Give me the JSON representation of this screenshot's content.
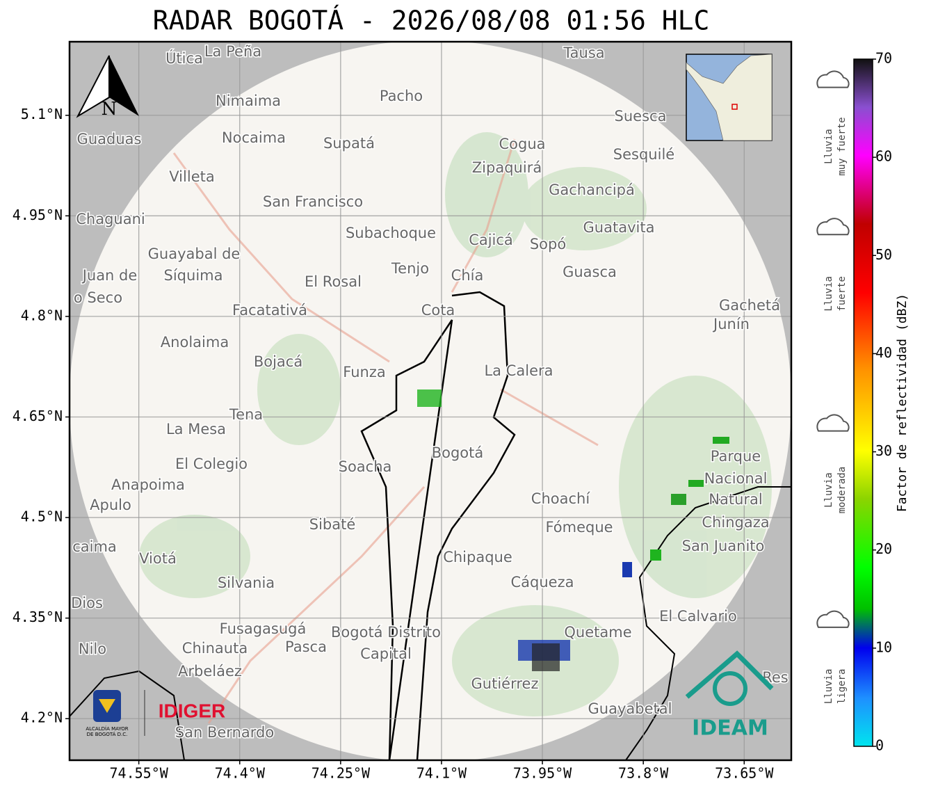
{
  "map": {
    "title": "RADAR BOGOTÁ - 2026/08/08 01:56 HLC",
    "xlim": [
      -74.653,
      -73.58
    ],
    "ylim": [
      4.138,
      5.2097
    ],
    "xticks": [
      {
        "value": -74.55,
        "label": "74.55°W"
      },
      {
        "value": -74.4,
        "label": "74.4°W"
      },
      {
        "value": -74.25,
        "label": "74.25°W"
      },
      {
        "value": -74.1,
        "label": "74.1°W"
      },
      {
        "value": -73.95,
        "label": "73.95°W"
      },
      {
        "value": -73.8,
        "label": "73.8°W"
      },
      {
        "value": -73.65,
        "label": "73.65°W"
      }
    ],
    "yticks": [
      {
        "value": 5.1,
        "label": "5.1°N"
      },
      {
        "value": 4.95,
        "label": "4.95°N"
      },
      {
        "value": 4.8,
        "label": "4.8°N"
      },
      {
        "value": 4.65,
        "label": "4.65°N"
      },
      {
        "value": 4.5,
        "label": "4.5°N"
      },
      {
        "value": 4.35,
        "label": "4.35°N"
      },
      {
        "value": 4.2,
        "label": "4.2°N"
      }
    ],
    "grid": true,
    "north": "N",
    "places": [
      "Útica",
      "La Peña",
      "Tausa",
      "Pacho",
      "Nimaima",
      "Guaduas",
      "Nocaima",
      "Supatá",
      "Cogua",
      "Zipaquirá",
      "Suesca",
      "Sesquilé",
      "Villeta",
      "Gachancipá",
      "San Francisco",
      "Chaguani",
      "Subachoque",
      "Cajicá",
      "Sopó",
      "Guatavita",
      "Guayabal de",
      "Síquima",
      "Tenjo",
      "Chía",
      "Guasca",
      "Juan de",
      "o Seco",
      "El Rosal",
      "Facatativá",
      "Cota",
      "Gachetá",
      "Junín",
      "Anolaima",
      "Bojacá",
      "Funza",
      "La Calera",
      "Tena",
      "La Mesa",
      "Bogotá",
      "Parque",
      "Nacional",
      "Natural",
      "Chingaza",
      "El Colegio",
      "Soacha",
      "Anapoima",
      "Apulo",
      "Choachí",
      "Fómeque",
      "Sibaté",
      "San Juanito",
      "caima",
      "Viotá",
      "Chipaque",
      "Silvania",
      "Cáqueza",
      "Dios",
      "El Calvario",
      "Fusagasugá",
      "Bogotá Distrito",
      "Capital",
      "Quetame",
      "Chinauta",
      "Pasca",
      "Nilo",
      "Arbeláez",
      "Gutiérrez",
      "Res",
      "Guayabetal",
      "San Bernardo"
    ],
    "logos": {
      "alcaldia": [
        "ALCALDÍA MAYOR",
        "DE BOGOTÁ D.C."
      ],
      "idiger": "IDIGER",
      "ideam": "IDEAM"
    },
    "colorbar": {
      "label": "Factor de reflectividad (dBZ)",
      "lim": [
        0,
        70
      ],
      "ticks": [
        0,
        10,
        20,
        30,
        40,
        50,
        60,
        70
      ],
      "categories": [
        {
          "lines": [
            "Lluvia",
            "muy fuerte"
          ],
          "value": 65
        },
        {
          "lines": [
            "Lluvia",
            "fuerte"
          ],
          "value": 50
        },
        {
          "lines": [
            "Lluvia",
            "moderada"
          ],
          "value": 30
        },
        {
          "lines": [
            "Lluvia",
            "ligera"
          ],
          "value": 10
        }
      ]
    }
  }
}
